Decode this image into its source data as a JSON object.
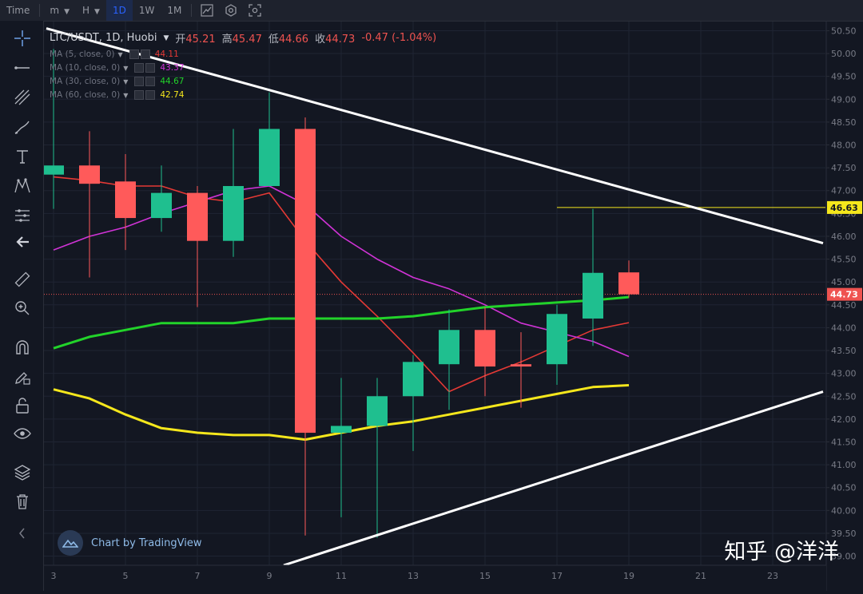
{
  "toolbar": {
    "items": [
      {
        "label": "Time"
      },
      {
        "label": "m"
      },
      {
        "label": "H"
      },
      {
        "label": "1D"
      },
      {
        "label": "1W"
      },
      {
        "label": "1M"
      }
    ],
    "active": "1D",
    "icons": [
      "chart-type-icon",
      "settings-icon",
      "screenshot-icon"
    ]
  },
  "sidebar_tools": [
    "crosshair-icon",
    "line-tool-icon",
    "fib-tool-icon",
    "brush-icon",
    "text-icon",
    "pattern-icon",
    "measure-icon",
    "back-arrow-icon",
    "ruler-icon",
    "zoom-icon",
    "magnet-icon",
    "lock-draw-icon",
    "unlock-icon",
    "eye-icon",
    "layers-icon",
    "trash-icon"
  ],
  "legend": {
    "symbol": "LTC/USDT, 1D, Huobi",
    "open_label": "开",
    "open": "45.21",
    "high_label": "高",
    "high": "45.47",
    "low_label": "低",
    "low": "44.66",
    "close_label": "收",
    "close": "44.73",
    "change": "-0.47 (-1.04%)"
  },
  "ma": [
    {
      "label": "MA (5, close, 0)",
      "value": "44.11",
      "color": "#e53935"
    },
    {
      "label": "MA (10, close, 0)",
      "value": "43.37",
      "color": "#d033d6"
    },
    {
      "label": "MA (30, close, 0)",
      "value": "44.67",
      "color": "#22d32a"
    },
    {
      "label": "MA (60, close, 0)",
      "value": "42.74",
      "color": "#f5e71c"
    }
  ],
  "branding": {
    "tradingview": "Chart by TradingView"
  },
  "watermark": "知乎 @洋洋",
  "chart_data": {
    "type": "candlestick",
    "symbol": "LTC/USDT",
    "interval": "1D",
    "exchange": "Huobi",
    "ylim": [
      38.8,
      50.7
    ],
    "y_ticks": [
      "39.00",
      "39.50",
      "40.00",
      "40.50",
      "41.00",
      "41.50",
      "42.00",
      "42.50",
      "43.00",
      "43.50",
      "44.00",
      "44.50",
      "45.00",
      "45.50",
      "46.00",
      "46.50",
      "47.00",
      "47.50",
      "48.00",
      "48.50",
      "49.00",
      "49.50",
      "50.00",
      "50.50"
    ],
    "x_ticks": [
      3,
      5,
      7,
      9,
      11,
      13,
      15,
      17,
      19,
      21,
      23
    ],
    "x_range": [
      3,
      24.4
    ],
    "candles": [
      {
        "day": 3,
        "open": 47.35,
        "high": 50.1,
        "low": 46.6,
        "close": 47.55
      },
      {
        "day": 4,
        "open": 47.55,
        "high": 48.3,
        "low": 45.1,
        "close": 47.15
      },
      {
        "day": 5,
        "open": 47.2,
        "high": 47.8,
        "low": 45.7,
        "close": 46.4
      },
      {
        "day": 6,
        "open": 46.4,
        "high": 47.55,
        "low": 46.1,
        "close": 46.95
      },
      {
        "day": 7,
        "open": 46.95,
        "high": 47.1,
        "low": 44.45,
        "close": 45.9
      },
      {
        "day": 8,
        "open": 45.9,
        "high": 48.35,
        "low": 45.55,
        "close": 47.1
      },
      {
        "day": 9,
        "open": 47.1,
        "high": 49.15,
        "low": 47.1,
        "close": 48.35
      },
      {
        "day": 10,
        "open": 48.35,
        "high": 48.6,
        "low": 39.45,
        "close": 41.7
      },
      {
        "day": 11,
        "open": 41.7,
        "high": 42.9,
        "low": 39.85,
        "close": 41.85
      },
      {
        "day": 12,
        "open": 41.85,
        "high": 42.9,
        "low": 39.4,
        "close": 42.5
      },
      {
        "day": 13,
        "open": 42.5,
        "high": 43.4,
        "low": 41.3,
        "close": 43.25
      },
      {
        "day": 14,
        "open": 43.2,
        "high": 44.4,
        "low": 42.2,
        "close": 43.95
      },
      {
        "day": 15,
        "open": 43.95,
        "high": 44.45,
        "low": 42.5,
        "close": 43.15
      },
      {
        "day": 16,
        "open": 43.2,
        "high": 43.9,
        "low": 42.25,
        "close": 43.15
      },
      {
        "day": 17,
        "open": 43.2,
        "high": 44.5,
        "low": 42.75,
        "close": 44.3
      },
      {
        "day": 18,
        "open": 44.2,
        "high": 46.6,
        "low": 43.6,
        "close": 45.2
      },
      {
        "day": 19,
        "open": 45.21,
        "high": 45.47,
        "low": 44.66,
        "close": 44.73
      }
    ],
    "ma_series": [
      {
        "name": "MA (5, close, 0)",
        "color": "#e53935",
        "points": [
          [
            3,
            47.3
          ],
          [
            4,
            47.22
          ],
          [
            5,
            47.1
          ],
          [
            6,
            47.1
          ],
          [
            7,
            46.85
          ],
          [
            8,
            46.75
          ],
          [
            9,
            46.95
          ],
          [
            10,
            45.9
          ],
          [
            11,
            45.0
          ],
          [
            12,
            44.25
          ],
          [
            13,
            43.45
          ],
          [
            14,
            42.6
          ],
          [
            15,
            42.95
          ],
          [
            16,
            43.25
          ],
          [
            17,
            43.6
          ],
          [
            18,
            43.95
          ],
          [
            19,
            44.11
          ]
        ]
      },
      {
        "name": "MA (10, close, 0)",
        "color": "#d033d6",
        "points": [
          [
            3,
            45.7
          ],
          [
            4,
            46.0
          ],
          [
            5,
            46.2
          ],
          [
            6,
            46.5
          ],
          [
            7,
            46.75
          ],
          [
            8,
            47.0
          ],
          [
            9,
            47.1
          ],
          [
            10,
            46.7
          ],
          [
            11,
            46.0
          ],
          [
            12,
            45.5
          ],
          [
            13,
            45.1
          ],
          [
            14,
            44.85
          ],
          [
            15,
            44.5
          ],
          [
            16,
            44.1
          ],
          [
            17,
            43.9
          ],
          [
            18,
            43.7
          ],
          [
            19,
            43.37
          ]
        ]
      },
      {
        "name": "MA (30, close, 0)",
        "color": "#22d32a",
        "points": [
          [
            3,
            43.55
          ],
          [
            4,
            43.8
          ],
          [
            5,
            43.95
          ],
          [
            6,
            44.1
          ],
          [
            7,
            44.1
          ],
          [
            8,
            44.1
          ],
          [
            9,
            44.2
          ],
          [
            10,
            44.2
          ],
          [
            11,
            44.2
          ],
          [
            12,
            44.2
          ],
          [
            13,
            44.25
          ],
          [
            14,
            44.35
          ],
          [
            15,
            44.45
          ],
          [
            16,
            44.5
          ],
          [
            17,
            44.55
          ],
          [
            18,
            44.6
          ],
          [
            19,
            44.67
          ]
        ]
      },
      {
        "name": "MA (60, close, 0)",
        "color": "#f5e71c",
        "points": [
          [
            3,
            42.65
          ],
          [
            4,
            42.45
          ],
          [
            5,
            42.1
          ],
          [
            6,
            41.8
          ],
          [
            7,
            41.7
          ],
          [
            8,
            41.65
          ],
          [
            9,
            41.65
          ],
          [
            10,
            41.55
          ],
          [
            11,
            41.7
          ],
          [
            12,
            41.85
          ],
          [
            13,
            41.95
          ],
          [
            14,
            42.1
          ],
          [
            15,
            42.25
          ],
          [
            16,
            42.4
          ],
          [
            17,
            42.55
          ],
          [
            18,
            42.7
          ],
          [
            19,
            42.74
          ]
        ]
      }
    ],
    "trendlines": [
      {
        "name": "upper-resistance-line",
        "color": "#ffffff",
        "from": [
          2.8,
          50.55
        ],
        "to": [
          24.4,
          45.85
        ]
      },
      {
        "name": "lower-support-line",
        "color": "#ffffff",
        "from": [
          9.4,
          38.8
        ],
        "to": [
          24.4,
          42.6
        ]
      }
    ],
    "horizontal_level": {
      "value": "46.63",
      "from_day": 17.0,
      "color": "#f5e71c"
    },
    "last_price": {
      "value": "44.73",
      "color": "#ef5350"
    },
    "colors": {
      "up": "#26a69a",
      "down": "#ef5350",
      "up_fill": "#1fbf8f",
      "down_fill": "#ff5a5a"
    }
  }
}
